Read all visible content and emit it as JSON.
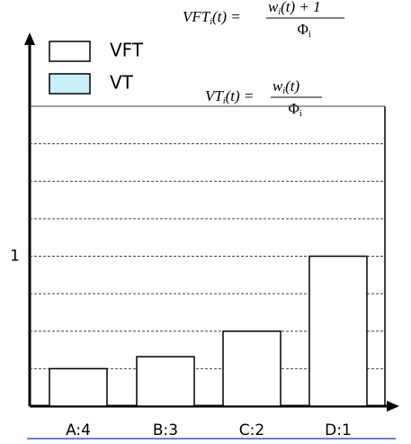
{
  "chart_data": {
    "type": "bar",
    "categories": [
      "A:4",
      "B:3",
      "C:2",
      "D:1"
    ],
    "series": [
      {
        "name": "VFT",
        "color": "#ffffff",
        "values": [
          0.25,
          0.33,
          0.5,
          1
        ]
      },
      {
        "name": "VT",
        "color": "#c8f0f8",
        "values": [
          null,
          null,
          null,
          null
        ]
      }
    ],
    "ylim": [
      0,
      2
    ],
    "yticks": [
      1
    ],
    "grid_lines": [
      0.25,
      0.5,
      0.75,
      1,
      1.25,
      1.5,
      1.75,
      2
    ],
    "grid": true,
    "formulas": [
      {
        "lhs": "VFT",
        "lhs_sub": "i",
        "lhs_arg": "(t) =",
        "num": "w",
        "num_sub": "i",
        "num_rest": "(t) + 1",
        "den": "Φ",
        "den_sub": "i"
      },
      {
        "lhs": "VT",
        "lhs_sub": "i",
        "lhs_arg": "(t) =",
        "num": "w",
        "num_sub": "i",
        "num_rest": "(t)",
        "den": "Φ",
        "den_sub": "i"
      }
    ]
  }
}
